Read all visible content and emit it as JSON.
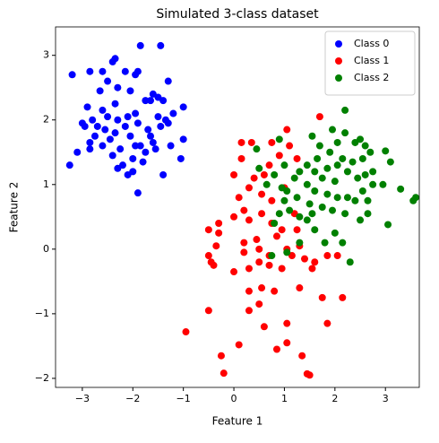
{
  "chart_data": {
    "type": "scatter",
    "title": "Simulated 3-class dataset",
    "x_label": "Feature 1",
    "y_label": "Feature 2",
    "xlim": [
      -3.53,
      3.67
    ],
    "ylim": [
      -2.14,
      3.44
    ],
    "xticks": [
      {
        "value": -3,
        "label": "−3"
      },
      {
        "value": -2,
        "label": "−2"
      },
      {
        "value": -1,
        "label": "−1"
      },
      0,
      1,
      2,
      3
    ],
    "yticks": [
      {
        "value": -2,
        "label": "−2"
      },
      {
        "value": -1,
        "label": "−1"
      },
      0,
      1,
      2,
      3
    ],
    "legend": "upper right",
    "series": [
      {
        "name": "Class 0",
        "color": "#0000ff",
        "x": [
          -3.2,
          -2.85,
          -2.6,
          -2.4,
          -2.35,
          -1.85,
          -1.45,
          -2.15,
          -1.9,
          -1.95,
          -1.3,
          -2.5,
          -2.3,
          -2.65,
          -2.05,
          -1.6,
          -1.5,
          -1.65,
          -1.4,
          -1.75,
          -2.35,
          -2.6,
          -2.9,
          -1.0,
          -1.2,
          -1.35,
          -1.5,
          -1.95,
          -2.1,
          -2.3,
          -2.5,
          -2.8,
          -3.0,
          -2.95,
          -2.7,
          -2.55,
          -2.35,
          -2.15,
          -1.9,
          -1.7,
          -1.45,
          -1.3,
          -1.65,
          -2.05,
          -2.45,
          -2.75,
          -2.85,
          -2.6,
          -2.25,
          -1.95,
          -1.75,
          -1.55,
          -1.0,
          -2.4,
          -2.0,
          -1.8,
          -2.2,
          -2.1,
          -1.4,
          -1.05,
          -1.9,
          -3.25,
          -3.1,
          -2.85,
          -1.6,
          -2.3,
          -1.85,
          -1.25,
          -2.0
        ],
        "values": [
          2.7,
          2.75,
          2.75,
          2.9,
          2.95,
          3.15,
          3.15,
          2.75,
          2.75,
          2.7,
          2.6,
          2.6,
          2.5,
          2.45,
          2.45,
          2.4,
          2.35,
          2.3,
          2.3,
          2.3,
          2.25,
          2.15,
          2.2,
          2.2,
          2.1,
          2.0,
          2.05,
          2.1,
          2.05,
          2.0,
          2.05,
          2.0,
          1.95,
          1.9,
          1.9,
          1.85,
          1.8,
          1.9,
          1.95,
          1.85,
          1.9,
          1.95,
          1.75,
          1.75,
          1.7,
          1.75,
          1.65,
          1.6,
          1.55,
          1.6,
          1.5,
          1.55,
          1.7,
          1.45,
          1.4,
          1.35,
          1.3,
          1.15,
          1.15,
          1.4,
          0.87,
          1.3,
          1.5,
          1.55,
          1.65,
          1.25,
          1.6,
          1.6,
          1.2
        ]
      },
      {
        "name": "Class 1",
        "color": "#ff0000",
        "x": [
          -0.95,
          -0.25,
          -0.2,
          0.1,
          1.45,
          1.5,
          1.05,
          1.35,
          0.6,
          0.85,
          1.05,
          1.85,
          -0.5,
          0.3,
          0.5,
          0.8,
          0.3,
          0.55,
          1.3,
          1.75,
          2.15,
          1.55,
          0.95,
          0.7,
          0.5,
          0.3,
          0.0,
          -0.4,
          -0.45,
          -0.5,
          0.2,
          0.5,
          0.7,
          1.15,
          1.4,
          1.85,
          2.05,
          -0.35,
          0.2,
          0.45,
          0.85,
          1.05,
          1.3,
          -0.5,
          -0.3,
          0.0,
          0.2,
          0.3,
          0.55,
          0.75,
          0.95,
          1.25,
          0.1,
          0.3,
          0.55,
          0.75,
          1.0,
          0.0,
          0.4,
          0.7,
          0.9,
          1.1,
          1.25,
          0.15,
          0.35,
          0.75,
          1.05,
          1.7,
          0.15,
          -0.3,
          1.6,
          1.2,
          0.6
        ],
        "values": [
          -1.28,
          -1.65,
          -1.92,
          -1.48,
          -1.93,
          -1.95,
          -1.45,
          -1.65,
          -1.2,
          -1.55,
          -1.15,
          -1.15,
          -0.95,
          -0.95,
          -0.85,
          -0.65,
          -0.65,
          -0.6,
          -0.6,
          -0.75,
          -0.75,
          -0.3,
          -0.3,
          -0.25,
          -0.2,
          -0.3,
          -0.35,
          -0.25,
          -0.2,
          -0.1,
          -0.05,
          0.0,
          -0.1,
          -0.1,
          -0.15,
          -0.1,
          -0.1,
          0.05,
          0.1,
          0.15,
          0.2,
          0.0,
          0.05,
          0.3,
          0.4,
          0.5,
          0.6,
          0.45,
          0.55,
          0.4,
          0.3,
          0.3,
          0.8,
          0.95,
          0.85,
          0.75,
          0.95,
          1.15,
          1.1,
          1.3,
          1.45,
          1.6,
          1.4,
          1.4,
          1.65,
          1.65,
          1.85,
          2.05,
          1.65,
          0.25,
          -0.2,
          0.55,
          1.15
        ]
      },
      {
        "name": "Class 2",
        "color": "#008000",
        "x": [
          0.5,
          0.65,
          0.8,
          0.95,
          1.05,
          1.25,
          1.1,
          0.9,
          1.0,
          1.3,
          1.55,
          1.75,
          1.95,
          2.2,
          2.5,
          2.65,
          2.0,
          2.15,
          1.8,
          1.6,
          1.45,
          1.3,
          0.75,
          1.05,
          2.3,
          3.05,
          3.55,
          3.6,
          3.3,
          2.95,
          2.75,
          2.55,
          2.4,
          2.25,
          2.05,
          1.85,
          1.6,
          1.45,
          1.3,
          1.45,
          1.65,
          1.85,
          2.05,
          2.25,
          2.45,
          2.6,
          2.75,
          2.15,
          2.35,
          2.55,
          1.9,
          1.7,
          1.55,
          1.95,
          2.2,
          2.4,
          2.5,
          2.2,
          2.05,
          3.0,
          3.1,
          2.7,
          0.45,
          1.0,
          1.2,
          1.75,
          2.0,
          2.65,
          1.6,
          0.9,
          1.5,
          0.8,
          2.6
        ],
        "values": [
          1.25,
          1.0,
          1.15,
          0.95,
          0.9,
          0.8,
          0.6,
          0.55,
          0.75,
          0.5,
          0.55,
          0.65,
          0.6,
          0.55,
          0.45,
          0.55,
          0.25,
          0.1,
          0.1,
          0.3,
          0.45,
          0.1,
          -0.1,
          -0.05,
          -0.2,
          0.38,
          0.75,
          0.8,
          0.93,
          1.0,
          1.0,
          0.9,
          0.75,
          0.8,
          0.8,
          0.85,
          0.9,
          1.0,
          1.2,
          1.3,
          1.4,
          1.25,
          1.3,
          1.2,
          1.1,
          1.15,
          1.2,
          1.4,
          1.35,
          1.4,
          1.5,
          1.6,
          1.75,
          1.85,
          1.8,
          1.65,
          1.7,
          2.15,
          1.65,
          1.52,
          1.35,
          1.5,
          1.55,
          1.3,
          1.1,
          1.1,
          1.05,
          0.75,
          1.2,
          1.7,
          0.7,
          0.4,
          1.6
        ]
      }
    ]
  }
}
